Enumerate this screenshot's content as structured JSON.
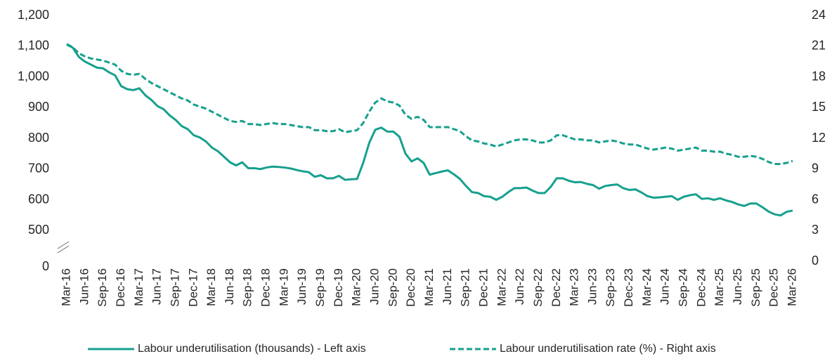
{
  "chart_data": {
    "type": "line",
    "categories": [
      "Mar-16",
      null,
      null,
      "Jun-16",
      null,
      null,
      "Sep-16",
      null,
      null,
      "Dec-16",
      null,
      null,
      "Mar-17",
      null,
      null,
      "Jun-17",
      null,
      null,
      "Sep-17",
      null,
      null,
      "Dec-17",
      null,
      null,
      "Mar-18",
      null,
      null,
      "Jun-18",
      null,
      null,
      "Sep-18",
      null,
      null,
      "Dec-18",
      null,
      null,
      "Mar-19",
      null,
      null,
      "Jun-19",
      null,
      null,
      "Sep-19",
      null,
      null,
      "Dec-19",
      null,
      null,
      "Mar-20",
      null,
      null,
      "Jun-20",
      null,
      null,
      "Sep-20",
      null,
      null,
      "Dec-20",
      null,
      null,
      "Mar-21",
      null,
      null,
      "Jun-21",
      null,
      null,
      "Sep-21",
      null,
      null,
      "Dec-21",
      null,
      null,
      "Mar-22",
      null,
      null,
      "Jun-22",
      null,
      null,
      "Sep-22",
      null,
      null,
      "Dec-22",
      null,
      null,
      "Mar-23",
      null,
      null,
      "Jun-23",
      null,
      null,
      "Sep-23",
      null,
      null,
      "Dec-23",
      null,
      null,
      "Mar-24",
      null,
      null,
      "Jun-24",
      null,
      null,
      "Sep-24",
      null,
      null,
      "Dec-24",
      null,
      null,
      "Mar-25",
      null,
      null,
      "Jun-25",
      null,
      null,
      "Sep-25",
      null,
      null,
      "Dec-25",
      null,
      null,
      "Mar-26"
    ],
    "series": [
      {
        "name": "Labour underutilisation (thousands) - Left axis",
        "color": "#16a08e",
        "dash": false,
        "axis": "y",
        "values": [
          1105,
          1095,
          1065,
          1050,
          1040,
          1030,
          1028,
          1015,
          1005,
          970,
          960,
          957,
          963,
          940,
          925,
          905,
          895,
          875,
          860,
          840,
          830,
          810,
          803,
          790,
          770,
          758,
          740,
          722,
          712,
          722,
          703,
          703,
          700,
          705,
          708,
          707,
          705,
          702,
          697,
          693,
          690,
          675,
          680,
          670,
          670,
          678,
          665,
          667,
          668,
          720,
          785,
          828,
          835,
          822,
          822,
          805,
          750,
          725,
          735,
          720,
          682,
          687,
          692,
          696,
          683,
          668,
          645,
          625,
          622,
          612,
          610,
          600,
          610,
          625,
          638,
          638,
          640,
          630,
          622,
          622,
          642,
          670,
          670,
          662,
          657,
          658,
          652,
          648,
          636,
          645,
          648,
          650,
          638,
          632,
          634,
          624,
          612,
          607,
          608,
          610,
          612,
          600,
          610,
          615,
          618,
          603,
          605,
          600,
          605,
          598,
          593,
          585,
          580,
          588,
          588,
          576,
          562,
          553,
          549,
          561,
          565
        ]
      },
      {
        "name": "Labour underutilisation rate (%) - Right axis",
        "color": "#16a08e",
        "dash": true,
        "axis": "y2",
        "values": [
          21.2,
          20.9,
          20.3,
          20.0,
          19.8,
          19.7,
          19.6,
          19.4,
          19.2,
          18.6,
          18.3,
          18.2,
          18.3,
          17.8,
          17.4,
          17.1,
          16.8,
          16.5,
          16.2,
          15.9,
          15.7,
          15.3,
          15.1,
          14.9,
          14.6,
          14.3,
          14.0,
          13.7,
          13.6,
          13.7,
          13.4,
          13.4,
          13.3,
          13.4,
          13.5,
          13.4,
          13.4,
          13.3,
          13.2,
          13.1,
          13.1,
          12.8,
          12.8,
          12.7,
          12.7,
          12.9,
          12.6,
          12.7,
          12.8,
          13.5,
          14.6,
          15.5,
          15.9,
          15.6,
          15.5,
          15.2,
          14.3,
          13.9,
          14.1,
          13.8,
          13.1,
          13.1,
          13.1,
          13.1,
          12.9,
          12.7,
          12.2,
          11.8,
          11.7,
          11.5,
          11.4,
          11.2,
          11.4,
          11.6,
          11.8,
          11.9,
          11.9,
          11.8,
          11.6,
          11.6,
          11.8,
          12.3,
          12.3,
          12.1,
          11.9,
          11.9,
          11.8,
          11.8,
          11.6,
          11.7,
          11.8,
          11.7,
          11.5,
          11.4,
          11.4,
          11.2,
          11.0,
          10.9,
          11.0,
          11.1,
          11.0,
          10.8,
          10.9,
          11.0,
          11.1,
          10.8,
          10.8,
          10.7,
          10.7,
          10.5,
          10.4,
          10.2,
          10.2,
          10.3,
          10.2,
          10.0,
          9.7,
          9.5,
          9.5,
          9.6,
          9.8
        ]
      }
    ],
    "ylim": [
      0,
      1200
    ],
    "ybreak": [
      0,
      400
    ],
    "yticks": [
      0,
      500,
      600,
      700,
      800,
      900,
      {
        "value": 1000,
        "label": "1,000"
      },
      {
        "value": 1100,
        "label": "1,100"
      },
      {
        "value": 1200,
        "label": "1,200"
      }
    ],
    "y2lim": [
      0,
      24
    ],
    "y2ticks": [
      0,
      3,
      6,
      9,
      12,
      15,
      18,
      21,
      24
    ],
    "grid": false,
    "legend": "bottom"
  }
}
